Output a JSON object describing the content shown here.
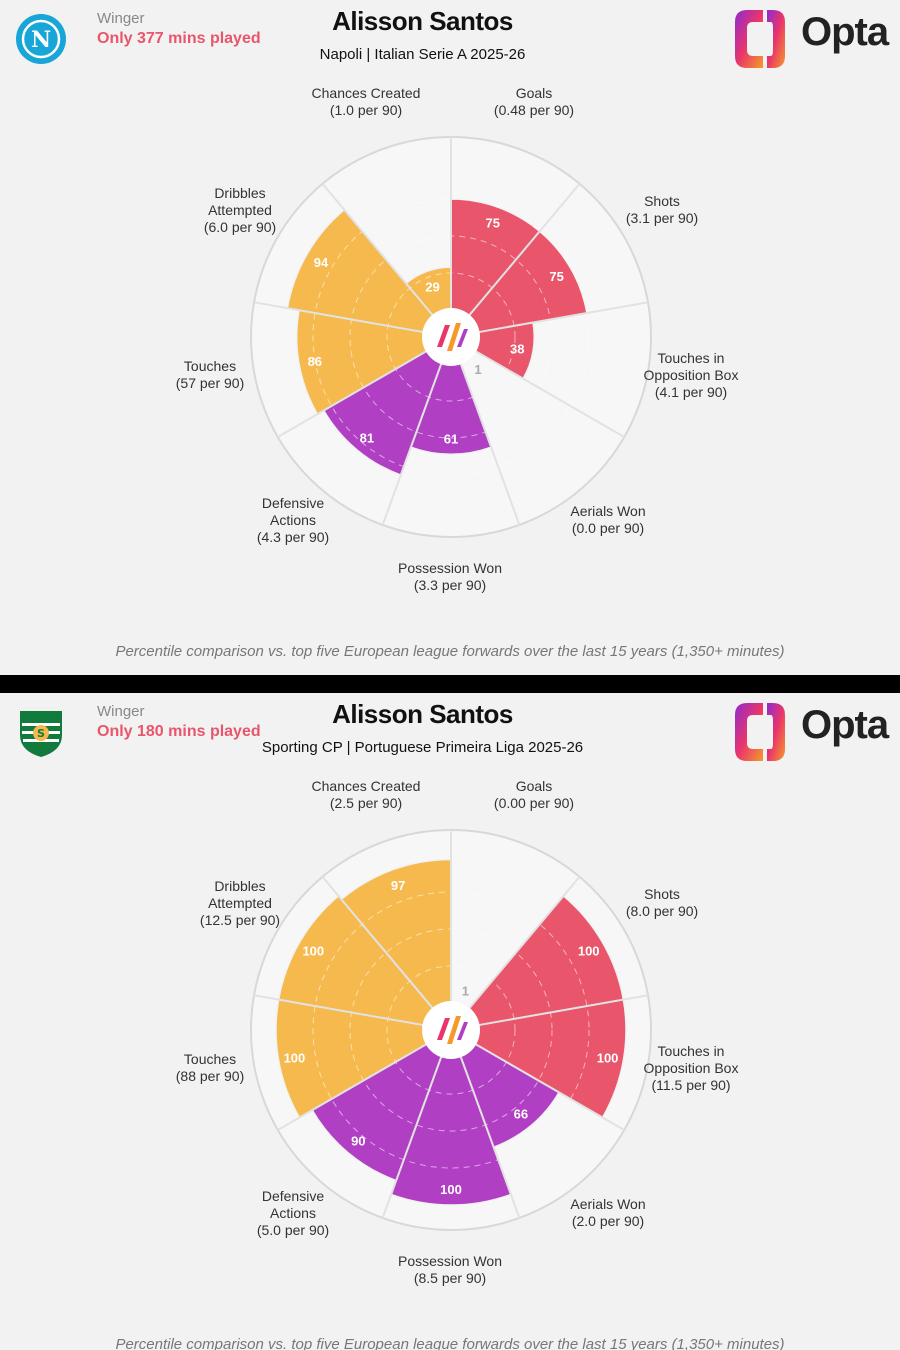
{
  "colors": {
    "red": "#e9566b",
    "yellow": "#f5b94e",
    "purple": "#b13fc4",
    "empty": "#f2f2f2",
    "ring": "#dddddd",
    "mins": "#e9566b"
  },
  "logo_text": "Opta",
  "panels": [
    {
      "club": "Napoli",
      "badge_letter": "N",
      "badge_icon": "napoli-crest-icon",
      "role": "Winger",
      "mins_note": "Only 377 mins played",
      "player": "Alisson Santos",
      "subtitle": "Napoli | Italian Serie A 2025-26",
      "footnote": "Percentile comparison vs. top five European league forwards over the last 15 years (1,350+ minutes)",
      "chart_data": {
        "type": "polar-area",
        "scale": [
          0,
          100
        ],
        "metrics": [
          {
            "name": "Goals",
            "label": [
              "Goals",
              "(0.48 per 90)"
            ],
            "value": 75,
            "group": "red"
          },
          {
            "name": "Shots",
            "label": [
              "Shots",
              "(3.1 per 90)"
            ],
            "value": 75,
            "group": "red"
          },
          {
            "name": "Touches in Opposition Box",
            "label": [
              "Touches in",
              "Opposition Box",
              "(4.1 per 90)"
            ],
            "value": 38,
            "group": "red"
          },
          {
            "name": "Aerials Won",
            "label": [
              "Aerials Won",
              "(0.0 per 90)"
            ],
            "value": 1,
            "group": "purple"
          },
          {
            "name": "Possession Won",
            "label": [
              "Possession Won",
              "(3.3 per 90)"
            ],
            "value": 61,
            "group": "purple"
          },
          {
            "name": "Defensive Actions",
            "label": [
              "Defensive",
              "Actions",
              "(4.3 per 90)"
            ],
            "value": 81,
            "group": "purple"
          },
          {
            "name": "Touches",
            "label": [
              "Touches",
              "(57 per 90)"
            ],
            "value": 86,
            "group": "yellow"
          },
          {
            "name": "Dribbles Attempted",
            "label": [
              "Dribbles",
              "Attempted",
              "(6.0 per 90)"
            ],
            "value": 94,
            "group": "yellow"
          },
          {
            "name": "Chances Created",
            "label": [
              "Chances Created",
              "(1.0 per 90)"
            ],
            "value": 29,
            "group": "yellow"
          }
        ]
      }
    },
    {
      "club": "Sporting CP",
      "badge_letter": "S",
      "badge_icon": "sporting-crest-icon",
      "role": "Winger",
      "mins_note": "Only 180 mins played",
      "player": "Alisson Santos",
      "subtitle": "Sporting CP | Portuguese Primeira Liga 2025-26",
      "footnote": "Percentile comparison vs. top five European league forwards over the last 15 years (1,350+ minutes)",
      "chart_data": {
        "type": "polar-area",
        "scale": [
          0,
          100
        ],
        "metrics": [
          {
            "name": "Goals",
            "label": [
              "Goals",
              "(0.00 per 90)"
            ],
            "value": 1,
            "group": "red"
          },
          {
            "name": "Shots",
            "label": [
              "Shots",
              "(8.0 per 90)"
            ],
            "value": 100,
            "group": "red"
          },
          {
            "name": "Touches in Opposition Box",
            "label": [
              "Touches in",
              "Opposition Box",
              "(11.5 per 90)"
            ],
            "value": 100,
            "group": "red"
          },
          {
            "name": "Aerials Won",
            "label": [
              "Aerials Won",
              "(2.0 per 90)"
            ],
            "value": 66,
            "group": "purple"
          },
          {
            "name": "Possession Won",
            "label": [
              "Possession Won",
              "(8.5 per 90)"
            ],
            "value": 100,
            "group": "purple"
          },
          {
            "name": "Defensive Actions",
            "label": [
              "Defensive",
              "Actions",
              "(5.0 per 90)"
            ],
            "value": 90,
            "group": "purple"
          },
          {
            "name": "Touches",
            "label": [
              "Touches",
              "(88 per 90)"
            ],
            "value": 100,
            "group": "yellow"
          },
          {
            "name": "Dribbles Attempted",
            "label": [
              "Dribbles",
              "Attempted",
              "(12.5 per 90)"
            ],
            "value": 100,
            "group": "yellow"
          },
          {
            "name": "Chances Created",
            "label": [
              "Chances Created",
              "(2.5 per 90)"
            ],
            "value": 97,
            "group": "yellow"
          }
        ]
      }
    }
  ]
}
